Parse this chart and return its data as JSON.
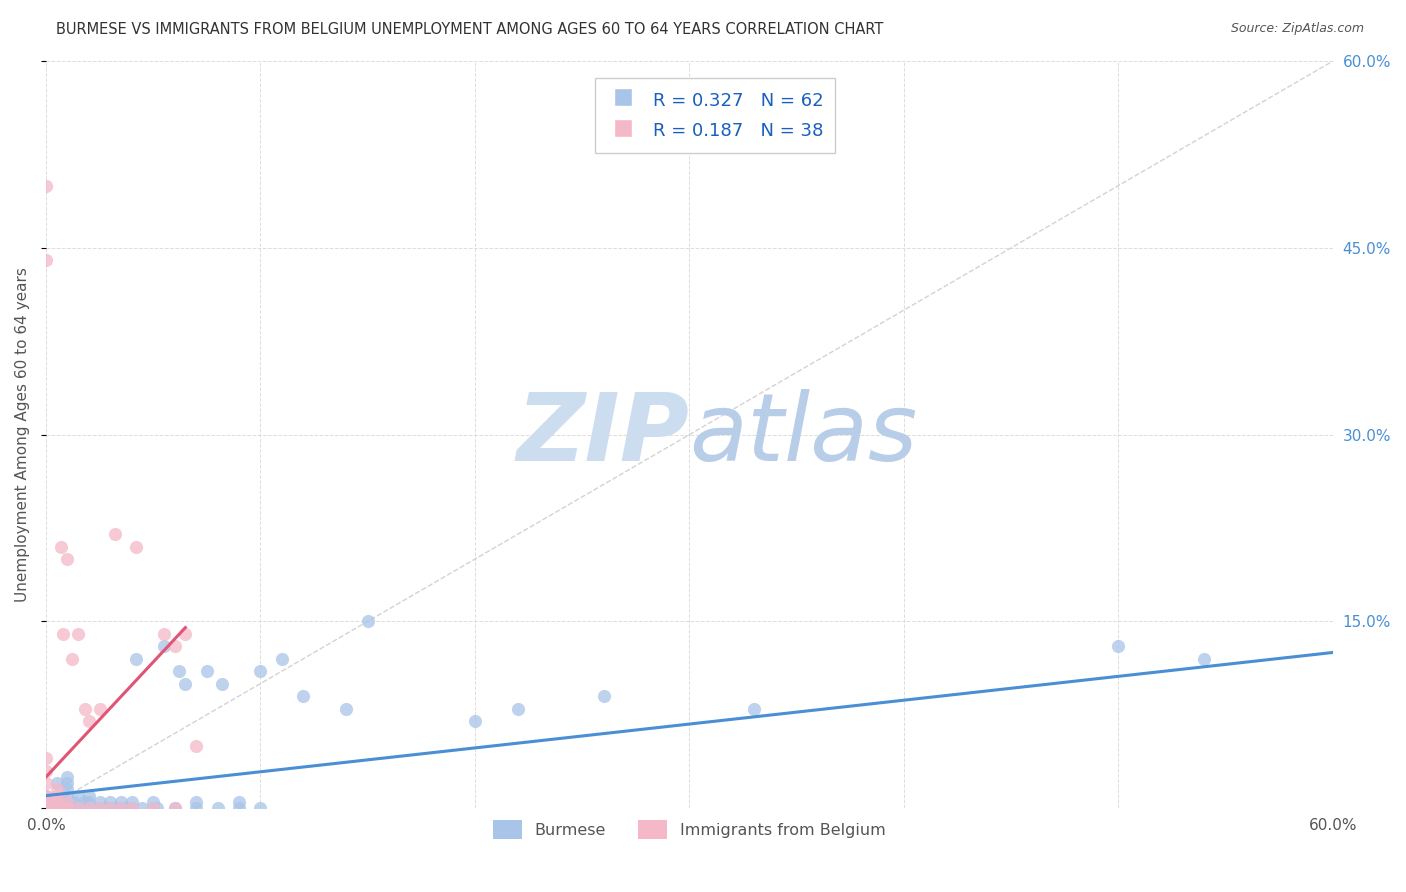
{
  "title": "BURMESE VS IMMIGRANTS FROM BELGIUM UNEMPLOYMENT AMONG AGES 60 TO 64 YEARS CORRELATION CHART",
  "source": "Source: ZipAtlas.com",
  "ylabel": "Unemployment Among Ages 60 to 64 years",
  "xlim": [
    0.0,
    0.6
  ],
  "ylim": [
    0.0,
    0.6
  ],
  "xticks": [
    0.0,
    0.1,
    0.2,
    0.3,
    0.4,
    0.5,
    0.6
  ],
  "yticks": [
    0.0,
    0.15,
    0.3,
    0.45,
    0.6
  ],
  "blue_R": 0.327,
  "blue_N": 62,
  "pink_R": 0.187,
  "pink_N": 38,
  "blue_color": "#a8c4e8",
  "pink_color": "#f5b8c8",
  "blue_line_color": "#4a8fd4",
  "pink_line_color": "#e05575",
  "diagonal_color": "#c8c8c8",
  "watermark_color": "#ccddf0",
  "grid_color": "#dddddd",
  "title_color": "#333333",
  "label_color": "#555555",
  "right_axis_color": "#4a8fd4",
  "legend_text_color": "#1a5fbf",
  "blue_scatter_x": [
    0.0,
    0.0,
    0.0,
    0.005,
    0.005,
    0.005,
    0.008,
    0.008,
    0.01,
    0.01,
    0.01,
    0.01,
    0.01,
    0.01,
    0.013,
    0.013,
    0.015,
    0.015,
    0.018,
    0.018,
    0.02,
    0.02,
    0.02,
    0.025,
    0.025,
    0.028,
    0.03,
    0.03,
    0.032,
    0.035,
    0.035,
    0.038,
    0.04,
    0.04,
    0.042,
    0.045,
    0.05,
    0.05,
    0.052,
    0.055,
    0.06,
    0.062,
    0.065,
    0.07,
    0.07,
    0.075,
    0.08,
    0.082,
    0.09,
    0.09,
    0.1,
    0.1,
    0.11,
    0.12,
    0.14,
    0.15,
    0.2,
    0.22,
    0.26,
    0.33,
    0.5,
    0.54
  ],
  "blue_scatter_y": [
    0.0,
    0.005,
    0.01,
    0.0,
    0.005,
    0.02,
    0.0,
    0.005,
    0.0,
    0.005,
    0.01,
    0.015,
    0.02,
    0.025,
    0.0,
    0.005,
    0.0,
    0.01,
    0.0,
    0.005,
    0.0,
    0.005,
    0.01,
    0.0,
    0.005,
    0.0,
    0.0,
    0.005,
    0.0,
    0.0,
    0.005,
    0.0,
    0.0,
    0.005,
    0.12,
    0.0,
    0.0,
    0.005,
    0.0,
    0.13,
    0.0,
    0.11,
    0.1,
    0.0,
    0.005,
    0.11,
    0.0,
    0.1,
    0.0,
    0.005,
    0.0,
    0.11,
    0.12,
    0.09,
    0.08,
    0.15,
    0.07,
    0.08,
    0.09,
    0.08,
    0.13,
    0.12
  ],
  "pink_scatter_x": [
    0.0,
    0.0,
    0.0,
    0.0,
    0.0,
    0.0,
    0.0,
    0.0,
    0.0,
    0.005,
    0.005,
    0.005,
    0.005,
    0.007,
    0.008,
    0.008,
    0.01,
    0.01,
    0.01,
    0.012,
    0.015,
    0.015,
    0.018,
    0.02,
    0.02,
    0.025,
    0.025,
    0.03,
    0.032,
    0.035,
    0.04,
    0.042,
    0.05,
    0.055,
    0.06,
    0.06,
    0.065,
    0.07
  ],
  "pink_scatter_y": [
    0.0,
    0.0,
    0.005,
    0.01,
    0.02,
    0.03,
    0.04,
    0.44,
    0.5,
    0.0,
    0.005,
    0.01,
    0.015,
    0.21,
    0.0,
    0.14,
    0.0,
    0.005,
    0.2,
    0.12,
    0.0,
    0.14,
    0.08,
    0.0,
    0.07,
    0.0,
    0.08,
    0.0,
    0.22,
    0.0,
    0.0,
    0.21,
    0.0,
    0.14,
    0.0,
    0.13,
    0.14,
    0.05
  ],
  "blue_line_start_x": 0.0,
  "blue_line_end_x": 0.6,
  "blue_line_start_y": 0.01,
  "blue_line_end_y": 0.125,
  "pink_line_start_x": 0.0,
  "pink_line_end_x": 0.065,
  "pink_line_start_y": 0.025,
  "pink_line_end_y": 0.145
}
